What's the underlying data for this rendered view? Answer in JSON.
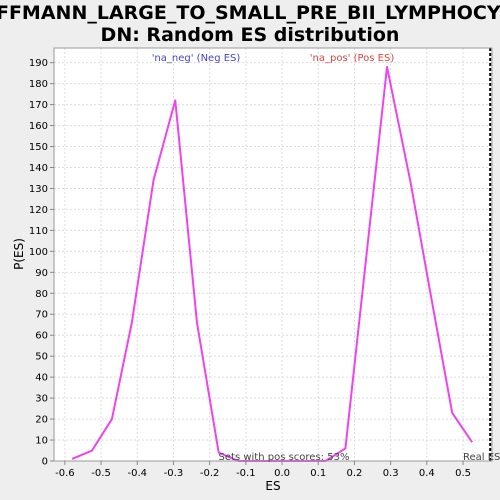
{
  "chart_data": {
    "type": "line",
    "title_line1": "HOFFMANN_LARGE_TO_SMALL_PRE_BII_LYMPHOCYTE_",
    "title_line2": "DN: Random ES distribution",
    "xlabel": "ES",
    "ylabel": "P(ES)",
    "xlim": [
      -0.63,
      0.58
    ],
    "ylim": [
      0,
      197
    ],
    "xticks": [
      -0.6,
      -0.5,
      -0.4,
      -0.3,
      -0.2,
      -0.1,
      0.0,
      0.1,
      0.2,
      0.3,
      0.4,
      0.5
    ],
    "xtick_labels": [
      "-0.6",
      "-0.5",
      "-0.4",
      "-0.3",
      "-0.2",
      "-0.1",
      "0.0",
      "0.1",
      "0.2",
      "0.3",
      "0.4",
      "0.5"
    ],
    "yticks": [
      0,
      10,
      20,
      30,
      40,
      50,
      60,
      70,
      80,
      90,
      100,
      110,
      120,
      130,
      140,
      150,
      160,
      170,
      180,
      190
    ],
    "grid": true,
    "series": [
      {
        "color": "#ee44ee",
        "x": [
          -0.58,
          -0.525,
          -0.47,
          -0.415,
          -0.355,
          -0.295,
          -0.235,
          -0.175,
          -0.12,
          -0.065,
          0.0,
          0.065,
          0.12,
          0.175,
          0.29,
          0.355,
          0.41,
          0.47,
          0.525
        ],
        "y": [
          1,
          5,
          20,
          66,
          134,
          172,
          66,
          4,
          0,
          0,
          0,
          0,
          0,
          6,
          188,
          133,
          80,
          23,
          9
        ]
      }
    ],
    "annotations": {
      "neg_label": "'na_neg' (Neg ES)",
      "neg_color": "#4444cc",
      "pos_label": "'na_pos' (Pos ES)",
      "pos_color": "#dd4444",
      "pos_scores": "Sets with pos scores: 53%",
      "real_es": "Real ES"
    },
    "real_es_x": 0.575
  }
}
